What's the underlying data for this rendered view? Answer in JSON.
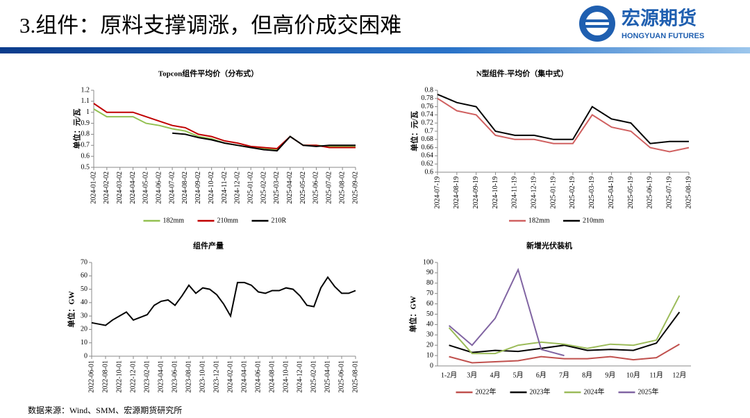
{
  "header": {
    "title": "3.组件：原料支撑调涨，但高价成交困难",
    "logo_name": "宏源期货",
    "logo_en": "HONGYUAN FUTURES"
  },
  "source": "数据来源：Wind、SMM、宏源期货研究所",
  "chart_data": [
    {
      "type": "line",
      "title": "Topcon组件平均价（分布式）",
      "y_label": "单位：元/瓦",
      "categories": [
        "2024-01-02",
        "2024-02-02",
        "2024-03-02",
        "2024-04-02",
        "2024-05-02",
        "2024-06-02",
        "2024-07-02",
        "2024-08-02",
        "2024-09-02",
        "2024-10-02",
        "2024-11-02",
        "2024-12-02",
        "2025-01-02",
        "2025-02-02",
        "2025-03-02",
        "2025-04-02",
        "2025-05-02",
        "2025-06-02",
        "2025-07-02",
        "2025-08-02",
        "2025-09-02"
      ],
      "series": [
        {
          "name": "182mm",
          "color": "#92c050",
          "values": [
            1.03,
            0.96,
            0.96,
            0.96,
            0.9,
            0.88,
            0.85,
            0.83,
            0.78,
            0.76,
            0.72,
            0.7,
            0.68,
            0.67,
            0.66,
            0.78,
            0.7,
            0.7,
            0.69,
            0.69,
            0.69
          ]
        },
        {
          "name": "210mm",
          "color": "#c00000",
          "values": [
            1.08,
            1.0,
            1.0,
            1.0,
            0.96,
            0.92,
            0.88,
            0.86,
            0.8,
            0.78,
            0.74,
            0.72,
            0.69,
            0.68,
            0.67,
            0.78,
            0.7,
            0.7,
            0.68,
            0.68,
            0.68
          ]
        },
        {
          "name": "210R",
          "color": "#000000",
          "values": [
            null,
            null,
            null,
            null,
            null,
            null,
            0.81,
            0.8,
            0.77,
            0.75,
            0.72,
            0.7,
            0.68,
            0.66,
            0.65,
            0.78,
            0.7,
            0.69,
            0.7,
            0.7,
            0.7
          ]
        }
      ],
      "ylim": [
        0.5,
        1.2
      ],
      "yticks": [
        0.5,
        0.6,
        0.7,
        0.8,
        0.9,
        1,
        1.1,
        1.2
      ],
      "legend": "bottom"
    },
    {
      "type": "line",
      "title": "N型组件-平均价（集中式）",
      "y_label": "单位：元/瓦",
      "categories": [
        "2024-07-19",
        "2024-08-19",
        "2024-09-19",
        "2024-10-19",
        "2024-11-19",
        "2024-12-19",
        "2025-01-19",
        "2025-02-19",
        "2025-03-19",
        "2025-04-19",
        "2025-05-19",
        "2025-06-19",
        "2025-07-19",
        "2025-08-19"
      ],
      "series": [
        {
          "name": "182mm",
          "color": "#d06060",
          "values": [
            0.78,
            0.75,
            0.74,
            0.69,
            0.68,
            0.68,
            0.67,
            0.67,
            0.74,
            0.71,
            0.7,
            0.66,
            0.65,
            0.66
          ]
        },
        {
          "name": "210mm",
          "color": "#000000",
          "values": [
            0.79,
            0.77,
            0.76,
            0.7,
            0.69,
            0.69,
            0.68,
            0.68,
            0.76,
            0.73,
            0.72,
            0.67,
            0.675,
            0.675
          ]
        }
      ],
      "ylim": [
        0.6,
        0.8
      ],
      "yticks": [
        0.6,
        0.62,
        0.64,
        0.66,
        0.68,
        0.7,
        0.72,
        0.74,
        0.76,
        0.78,
        0.8
      ],
      "legend": "bottom"
    },
    {
      "type": "line",
      "title": "组件产量",
      "y_label": "单位：GW",
      "categories": [
        "2022-06-01",
        null,
        "2022-08-01",
        null,
        "2022-10-01",
        null,
        "2022-12-01",
        null,
        "2023-02-01",
        null,
        "2023-04-01",
        null,
        "2023-06-01",
        null,
        "2023-08-01",
        null,
        "2023-10-01",
        null,
        "2023-12-01",
        null,
        "2024-02-01",
        null,
        "2024-04-01",
        null,
        "2024-06-01",
        null,
        "2024-08-01",
        null,
        "2024-10-01",
        null,
        "2024-12-01",
        null,
        "2025-02-01",
        null,
        "2025-04-01",
        null,
        "2025-06-01",
        null,
        "2025-08-01"
      ],
      "series": [
        {
          "name": "组件产量",
          "color": "#000000",
          "values": [
            25,
            24,
            23,
            27,
            30,
            33,
            27,
            29,
            31,
            38,
            41,
            42,
            38,
            45,
            53,
            47,
            51,
            50,
            46,
            39,
            30,
            55,
            55,
            53,
            48,
            47,
            49,
            49,
            51,
            50,
            45,
            38,
            37,
            51,
            59,
            52,
            47,
            47,
            49
          ]
        }
      ],
      "ylim": [
        0,
        70
      ],
      "yticks": [
        0,
        10,
        20,
        30,
        40,
        50,
        60,
        70
      ]
    },
    {
      "type": "line",
      "title": "新增光伏装机",
      "y_label": "单位：GW",
      "categories": [
        "1-2月",
        "3月",
        "4月",
        "5月",
        "6月",
        "7月",
        "8月",
        "9月",
        "10月",
        "11月",
        "12月"
      ],
      "series": [
        {
          "name": "2022年",
          "color": "#c0504d",
          "values": [
            9,
            3,
            4,
            5,
            9,
            7,
            7,
            9,
            6,
            8,
            21
          ]
        },
        {
          "name": "2023年",
          "color": "#000000",
          "values": [
            20,
            13,
            15,
            14,
            17,
            20,
            15,
            16,
            15,
            22,
            52
          ]
        },
        {
          "name": "2024年",
          "color": "#9bbb59",
          "values": [
            37,
            12,
            12,
            20,
            23,
            21,
            17,
            21,
            20,
            25,
            68
          ]
        },
        {
          "name": "2025年",
          "color": "#8064a2",
          "values": [
            39,
            20,
            46,
            93,
            16,
            10,
            null,
            null,
            null,
            null,
            null
          ]
        }
      ],
      "ylim": [
        0,
        100
      ],
      "yticks": [
        0,
        10,
        20,
        30,
        40,
        50,
        60,
        70,
        80,
        90,
        100
      ],
      "legend": "bottom"
    }
  ]
}
